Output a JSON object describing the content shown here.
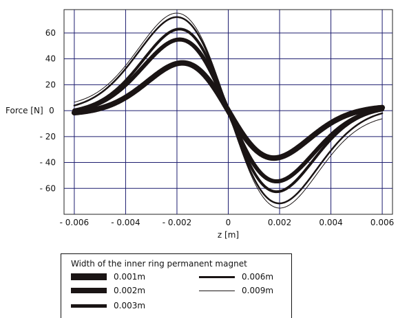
{
  "chart_data": {
    "type": "line",
    "title": "",
    "xlabel": "z [m]",
    "ylabel": "Force [N]",
    "xlim": [
      -0.0064,
      0.0064
    ],
    "ylim": [
      -80,
      78
    ],
    "grid": true,
    "line_color": "#1a1414",
    "grid_color": "#1c1c6e",
    "x_ticks": [
      -0.006,
      -0.004,
      -0.002,
      0,
      0.002,
      0.004,
      0.006
    ],
    "x_tick_labels": [
      "- 0.006",
      "- 0.004",
      "- 0.002",
      "0",
      "0.002",
      "0.004",
      "0.006"
    ],
    "y_ticks": [
      60,
      40,
      20,
      0,
      -20,
      -40,
      -60
    ],
    "y_tick_labels": [
      "60",
      "40",
      "20",
      "0",
      "- 20",
      "- 40",
      "- 60"
    ],
    "legend_title": "Width of the inner ring permanent magnet",
    "legend_position": "bottom",
    "series": [
      {
        "name": "0.001m",
        "peak": 37,
        "peak_z": 0.0018,
        "tail_min": -2.4,
        "tail_max": 3.2,
        "stroke": 8
      },
      {
        "name": "0.002m",
        "peak": 55,
        "peak_z": 0.0019,
        "tail_min": -2.0,
        "tail_max": 3.0,
        "stroke": 6
      },
      {
        "name": "0.003m",
        "peak": 63,
        "peak_z": 0.0019,
        "tail_min": -1.6,
        "tail_max": 2.8,
        "stroke": 4
      },
      {
        "name": "0.006m",
        "peak": 72,
        "peak_z": 0.002,
        "tail_min": 0.0,
        "tail_max": 2.0,
        "stroke": 2.5
      },
      {
        "name": "0.009m",
        "peak": 75,
        "peak_z": 0.002,
        "tail_min": 2.5,
        "tail_max": -2.2,
        "stroke": 1
      }
    ]
  },
  "legend": {
    "title": "Width of the inner ring permanent magnet",
    "items": [
      {
        "label": "0.001m"
      },
      {
        "label": "0.002m"
      },
      {
        "label": "0.003m"
      },
      {
        "label": "0.006m"
      },
      {
        "label": "0.009m"
      }
    ]
  }
}
